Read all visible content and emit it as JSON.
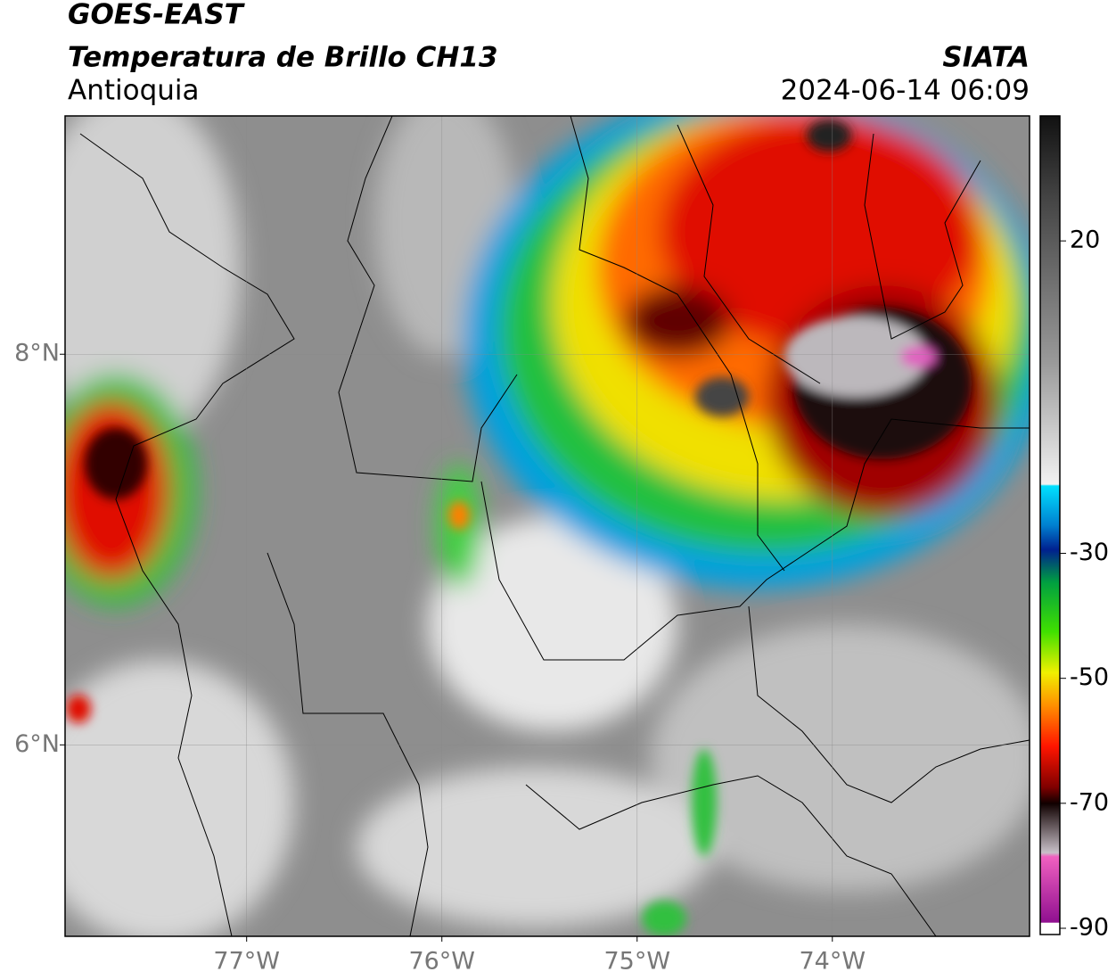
{
  "header": {
    "title": "GOES-EAST",
    "subtitle": "Temperatura de Brillo CH13",
    "region": "Antioquia",
    "source": "SIATA",
    "datetime": "2024-06-14 06:09"
  },
  "map": {
    "lon_range": [
      -77.93,
      -72.99
    ],
    "lat_range": [
      5.02,
      9.22
    ],
    "lon_ticks": [
      {
        "value": -77,
        "label": "77°W"
      },
      {
        "value": -76,
        "label": "76°W"
      },
      {
        "value": -75,
        "label": "75°W"
      },
      {
        "value": -74,
        "label": "74°W"
      }
    ],
    "lat_ticks": [
      {
        "value": 8,
        "label": "8°N"
      },
      {
        "value": 6,
        "label": "6°N"
      }
    ]
  },
  "colorbar": {
    "range": [
      -91,
      40
    ],
    "ticks": [
      20,
      -30,
      -50,
      -70,
      -90
    ]
  }
}
